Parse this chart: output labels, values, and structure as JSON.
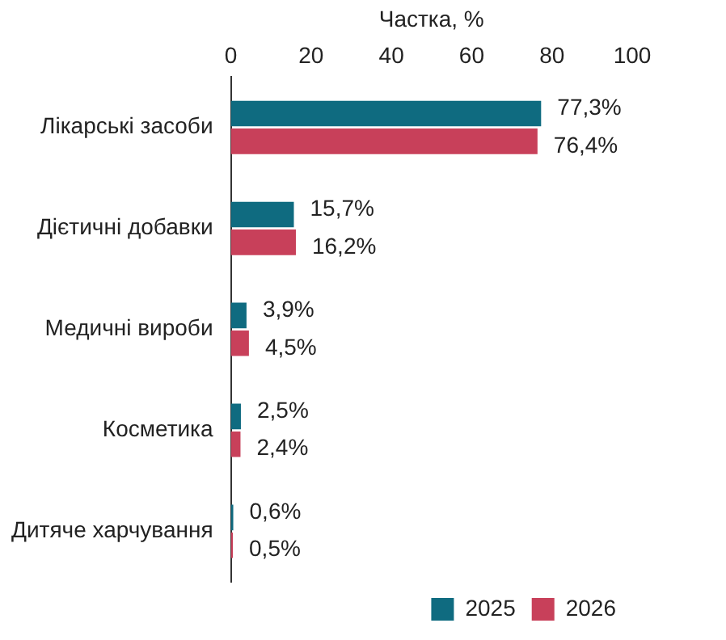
{
  "chart_data": {
    "type": "bar",
    "orientation": "horizontal",
    "xlabel": "Частка, %",
    "categories": [
      "Лікарські засоби",
      "Дієтичні добавки",
      "Медичні вироби",
      "Косметика",
      "Дитяче харчування"
    ],
    "series": [
      {
        "name": "2025",
        "color": "#0f6b80",
        "values": [
          77.3,
          15.7,
          3.9,
          2.5,
          0.6
        ],
        "value_labels": [
          "77,3%",
          "15,7%",
          "3,9%",
          "2,5%",
          "0,6%"
        ]
      },
      {
        "name": "2026",
        "color": "#c8405a",
        "values": [
          76.4,
          16.2,
          4.5,
          2.4,
          0.5
        ],
        "value_labels": [
          "76,4%",
          "16,2%",
          "4,5%",
          "2,4%",
          "0,5%"
        ]
      }
    ],
    "xlim": [
      0,
      100
    ],
    "xticks": [
      0,
      20,
      40,
      60,
      80,
      100
    ],
    "grid": false,
    "legend": "bottom right"
  }
}
